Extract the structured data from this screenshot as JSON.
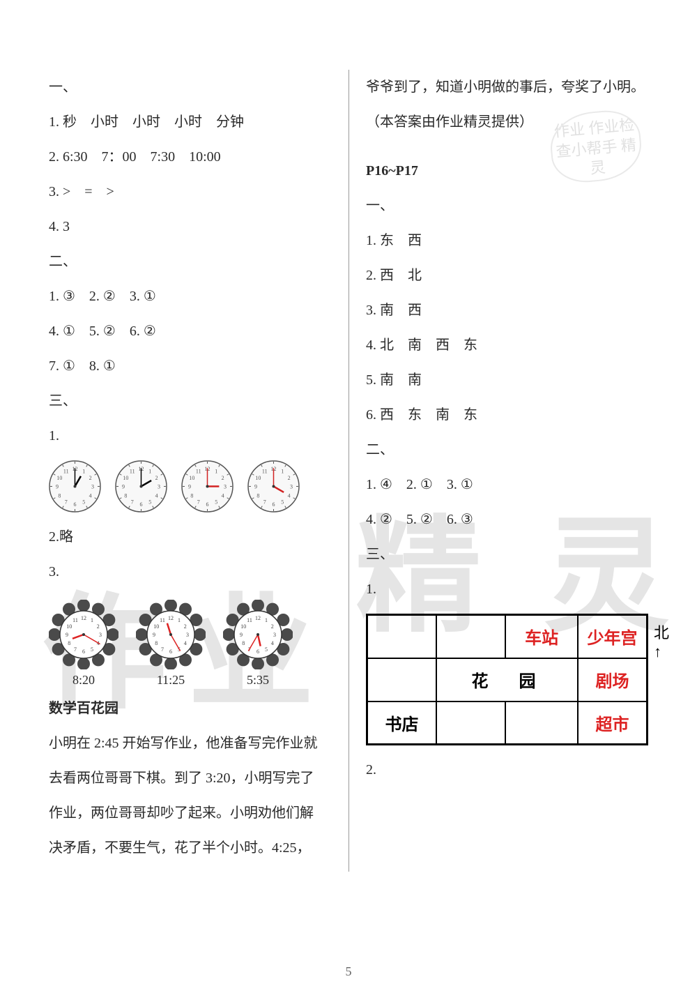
{
  "left": {
    "sec1_head": "一、",
    "l1": "1. 秒　小时　小时　小时　分钟",
    "l2": "2. 6:30　7：00　7:30　10:00",
    "l3": "3. >　=　>",
    "l4": "4. 3",
    "sec2_head": "二、",
    "l5": "1. ③　2. ②　3. ①",
    "l6": "4. ①　5. ②　6. ②",
    "l7": "7. ①　8. ①",
    "sec3_head": "三、",
    "l8": "1.",
    "clocks1": [
      {
        "hour": 1,
        "minute": 0,
        "hand_color": "#000000"
      },
      {
        "hour": 2,
        "minute": 0,
        "hand_color": "#000000"
      },
      {
        "hour": 3,
        "minute": 0,
        "hand_color": "#d22222"
      },
      {
        "hour": 4,
        "minute": 0,
        "hand_color": "#d22222"
      }
    ],
    "l9": "2.略",
    "l10": "3.",
    "flower_clocks": [
      {
        "label": "8:20",
        "hour": 8,
        "minute": 20
      },
      {
        "label": "11:25",
        "hour": 11,
        "minute": 25
      },
      {
        "label": "5:35",
        "hour": 5,
        "minute": 35
      }
    ],
    "garden_title": "数学百花园",
    "story1": "小明在 2:45 开始写作业，他准备写完作业就",
    "story2": "去看两位哥哥下棋。到了 3:20，小明写完了",
    "story3": "作业，两位哥哥却吵了起来。小明劝他们解",
    "story4": "决矛盾，不要生气，花了半个小时。4:25，"
  },
  "right": {
    "story5": "爷爷到了，知道小明做的事后，夸奖了小明。",
    "story6": "（本答案由作业精灵提供）",
    "page_ref": "P16~P17",
    "sec1_head": "一、",
    "r1": "1. 东　西",
    "r2": "2. 西　北",
    "r3": "3. 南　西",
    "r4": "4. 北　南　西　东",
    "r5": "5. 南　南",
    "r6": "6. 西　东　南　东",
    "sec2_head": "二、",
    "r7": "1. ④　2. ①　3. ①",
    "r8": "4. ②　5. ②　6. ③",
    "sec3_head": "三、",
    "r9": "1.",
    "map": {
      "rows": [
        [
          "",
          "",
          "车站",
          "少年宫"
        ],
        [
          "",
          "花",
          "园",
          "剧场"
        ],
        [
          "书店",
          "",
          "",
          "超市"
        ]
      ],
      "red_cells": [
        [
          0,
          2
        ],
        [
          0,
          3
        ],
        [
          1,
          3
        ],
        [
          2,
          3
        ]
      ],
      "north_label": "北"
    },
    "r10": "2."
  },
  "page_number": "5",
  "stamp_text": "作业\n作业检查小帮手\n精灵",
  "watermarks": {
    "w1": "作",
    "w2": "业",
    "w3": "精",
    "w4": "灵"
  },
  "styles": {
    "text_color": "#2a2a2a",
    "red": "#d22222",
    "divider_color": "#999999",
    "background": "#ffffff",
    "font_size": 20,
    "line_height": 2.5,
    "clock_face_fill": "#f8f8f8",
    "clock_stroke": "#555555",
    "flower_petal": "#4a4a4a",
    "flower_center": "#ffffff"
  }
}
